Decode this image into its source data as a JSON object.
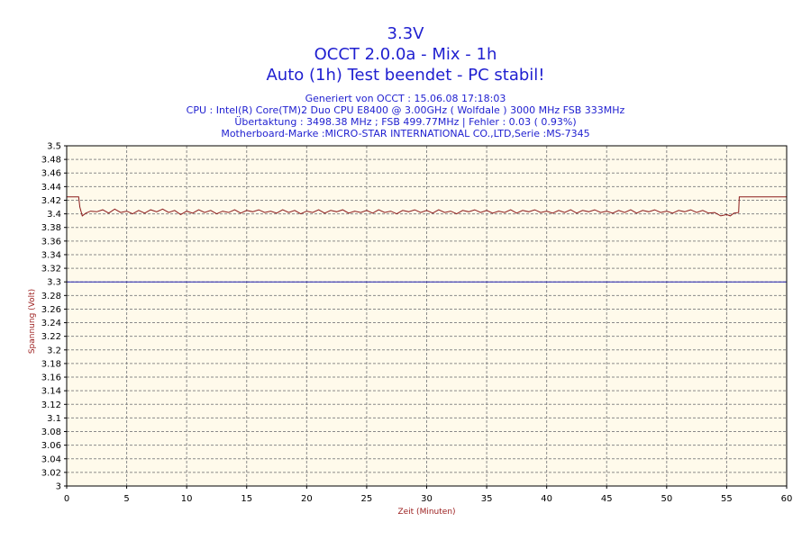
{
  "chart_data": {
    "type": "line",
    "title_lines": [
      "3.3V",
      "OCCT 2.0.0a - Mix - 1h",
      "Auto (1h) Test beendet - PC stabil!"
    ],
    "info_lines": [
      "Generiert von OCCT : 15.06.08 17:18:03",
      "CPU : Intel(R) Core(TM)2 Duo CPU E8400 @ 3.00GHz ( Wolfdale ) 3000 MHz FSB 333MHz",
      "Übertaktung : 3498.38 MHz ; FSB 499.77MHz | Fehler : 0.03 ( 0.93%)",
      "Motherboard-Marke :MICRO-STAR INTERNATIONAL CO.,LTD,Serie :MS-7345"
    ],
    "xlabel": "Zeit (Minuten)",
    "ylabel": "Spannung (Volt)",
    "xlim": [
      0,
      60
    ],
    "ylim": [
      3.0,
      3.5
    ],
    "x_ticks": [
      0,
      5,
      10,
      15,
      20,
      25,
      30,
      35,
      40,
      45,
      50,
      55,
      60
    ],
    "y_ticks": [
      "3",
      "3.02",
      "3.04",
      "3.06",
      "3.08",
      "3.1",
      "3.12",
      "3.14",
      "3.16",
      "3.18",
      "3.2",
      "3.22",
      "3.24",
      "3.26",
      "3.28",
      "3.3",
      "3.32",
      "3.34",
      "3.36",
      "3.38",
      "3.4",
      "3.42",
      "3.44",
      "3.46",
      "3.48",
      "3.5"
    ],
    "grid": true,
    "background_color": "#fffaeb",
    "colors": {
      "title": "#1f1fd0",
      "axis_label": "#9b1c1c",
      "series_line": "#8b1a1a",
      "reference_line": "#2020b0",
      "grid": "#8a8a8a"
    },
    "reference_line": {
      "y": 3.3
    },
    "series": [
      {
        "values": [
          [
            0,
            3.425
          ],
          [
            1.0,
            3.425
          ],
          [
            1.1,
            3.41
          ],
          [
            1.3,
            3.397
          ],
          [
            1.6,
            3.401
          ],
          [
            2.0,
            3.404
          ],
          [
            2.5,
            3.403
          ],
          [
            3.0,
            3.406
          ],
          [
            3.5,
            3.401
          ],
          [
            4.0,
            3.407
          ],
          [
            4.5,
            3.402
          ],
          [
            5.0,
            3.404
          ],
          [
            5.5,
            3.4
          ],
          [
            6.0,
            3.405
          ],
          [
            6.5,
            3.401
          ],
          [
            7.0,
            3.406
          ],
          [
            7.5,
            3.403
          ],
          [
            8.0,
            3.407
          ],
          [
            8.5,
            3.402
          ],
          [
            9.0,
            3.405
          ],
          [
            9.5,
            3.399
          ],
          [
            10.0,
            3.404
          ],
          [
            10.5,
            3.401
          ],
          [
            11.0,
            3.406
          ],
          [
            11.5,
            3.402
          ],
          [
            12.0,
            3.405
          ],
          [
            12.5,
            3.4
          ],
          [
            13.0,
            3.404
          ],
          [
            13.5,
            3.402
          ],
          [
            14.0,
            3.406
          ],
          [
            14.5,
            3.401
          ],
          [
            15.0,
            3.405
          ],
          [
            15.5,
            3.403
          ],
          [
            16.0,
            3.406
          ],
          [
            16.5,
            3.402
          ],
          [
            17.0,
            3.404
          ],
          [
            17.5,
            3.401
          ],
          [
            18.0,
            3.406
          ],
          [
            18.5,
            3.402
          ],
          [
            19.0,
            3.405
          ],
          [
            19.5,
            3.4
          ],
          [
            20.0,
            3.404
          ],
          [
            20.5,
            3.402
          ],
          [
            21.0,
            3.406
          ],
          [
            21.5,
            3.401
          ],
          [
            22.0,
            3.405
          ],
          [
            22.5,
            3.403
          ],
          [
            23.0,
            3.406
          ],
          [
            23.5,
            3.401
          ],
          [
            24.0,
            3.404
          ],
          [
            24.5,
            3.402
          ],
          [
            25.0,
            3.405
          ],
          [
            25.5,
            3.401
          ],
          [
            26.0,
            3.406
          ],
          [
            26.5,
            3.402
          ],
          [
            27.0,
            3.404
          ],
          [
            27.5,
            3.4
          ],
          [
            28.0,
            3.405
          ],
          [
            28.5,
            3.403
          ],
          [
            29.0,
            3.406
          ],
          [
            29.5,
            3.402
          ],
          [
            30.0,
            3.405
          ],
          [
            30.5,
            3.401
          ],
          [
            31.0,
            3.406
          ],
          [
            31.5,
            3.402
          ],
          [
            32.0,
            3.404
          ],
          [
            32.5,
            3.4
          ],
          [
            33.0,
            3.405
          ],
          [
            33.5,
            3.403
          ],
          [
            34.0,
            3.406
          ],
          [
            34.5,
            3.402
          ],
          [
            35.0,
            3.405
          ],
          [
            35.5,
            3.401
          ],
          [
            36.0,
            3.404
          ],
          [
            36.5,
            3.402
          ],
          [
            37.0,
            3.406
          ],
          [
            37.5,
            3.401
          ],
          [
            38.0,
            3.405
          ],
          [
            38.5,
            3.403
          ],
          [
            39.0,
            3.406
          ],
          [
            39.5,
            3.402
          ],
          [
            40.0,
            3.404
          ],
          [
            40.5,
            3.401
          ],
          [
            41.0,
            3.405
          ],
          [
            41.5,
            3.402
          ],
          [
            42.0,
            3.406
          ],
          [
            42.5,
            3.401
          ],
          [
            43.0,
            3.405
          ],
          [
            43.5,
            3.403
          ],
          [
            44.0,
            3.406
          ],
          [
            44.5,
            3.402
          ],
          [
            45.0,
            3.404
          ],
          [
            45.5,
            3.401
          ],
          [
            46.0,
            3.405
          ],
          [
            46.5,
            3.402
          ],
          [
            47.0,
            3.406
          ],
          [
            47.5,
            3.401
          ],
          [
            48.0,
            3.405
          ],
          [
            48.5,
            3.403
          ],
          [
            49.0,
            3.406
          ],
          [
            49.5,
            3.402
          ],
          [
            50.0,
            3.404
          ],
          [
            50.5,
            3.401
          ],
          [
            51.0,
            3.405
          ],
          [
            51.5,
            3.403
          ],
          [
            52.0,
            3.406
          ],
          [
            52.5,
            3.402
          ],
          [
            53.0,
            3.405
          ],
          [
            53.5,
            3.401
          ],
          [
            54.0,
            3.402
          ],
          [
            54.5,
            3.397
          ],
          [
            55.0,
            3.399
          ],
          [
            55.3,
            3.397
          ],
          [
            55.6,
            3.401
          ],
          [
            56.0,
            3.402
          ],
          [
            56.05,
            3.425
          ],
          [
            60,
            3.425
          ]
        ]
      }
    ]
  }
}
